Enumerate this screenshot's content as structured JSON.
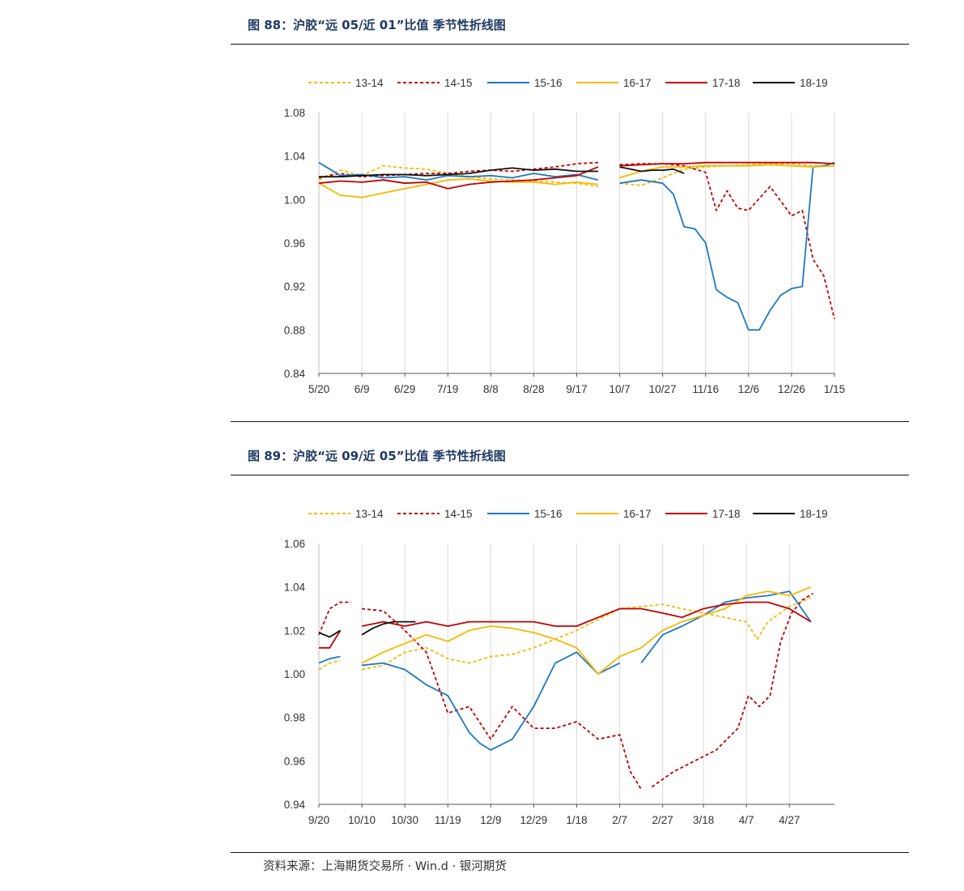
{
  "figures": [
    {
      "title": "图 88：沪胶“远 05/近 01”比值 季节性折线图"
    },
    {
      "title": "图 89：沪胶“远 09/近 05”比值 季节性折线图"
    }
  ],
  "source_note": "资料来源：上海期货交易所 · Win.d · 银河期货",
  "colors": {
    "13-14": "#f5b800",
    "14-15": "#c00000",
    "15-16": "#1f78c1",
    "16-17": "#f5b800",
    "17-18": "#c00000",
    "18-19": "#111111"
  },
  "chart_data": [
    {
      "type": "line",
      "title": "图 88：沪胶“远 05/近 01”比值 季节性折线图",
      "legend_position": "top",
      "grid": "vertical",
      "ylim": [
        0.84,
        1.08
      ],
      "yticks": [
        "1.08",
        "1.04",
        "1.00",
        "0.96",
        "0.92",
        "0.88",
        "0.84"
      ],
      "xticks": [
        "5/20",
        "6/9",
        "6/29",
        "7/19",
        "8/8",
        "8/28",
        "9/17",
        "10/7",
        "10/27",
        "11/16",
        "12/6",
        "12/26",
        "1/15"
      ],
      "series": [
        {
          "name": "13-14",
          "style": "dashed",
          "x": [
            "5/20",
            "5/30",
            "6/9",
            "6/19",
            "6/29",
            "7/9",
            "7/19",
            "7/29",
            "8/8",
            "8/18",
            "8/28",
            "9/7",
            "9/17",
            "9/27"
          ],
          "values": [
            1.018,
            1.027,
            1.022,
            1.031,
            1.029,
            1.028,
            1.024,
            1.021,
            1.019,
            1.018,
            1.017,
            1.016,
            1.015,
            1.012
          ]
        },
        {
          "name": "13-14",
          "style": "dashed",
          "x": [
            "10/7",
            "10/17",
            "10/27",
            "11/6",
            "11/16",
            "11/26",
            "12/6",
            "12/16",
            "12/26",
            "1/5",
            "1/15"
          ],
          "values": [
            1.015,
            1.013,
            1.02,
            1.028,
            1.03,
            1.031,
            1.032,
            1.033,
            1.033,
            1.031,
            1.031
          ]
        },
        {
          "name": "14-15",
          "style": "dashed",
          "x": [
            "5/20",
            "5/30",
            "6/9",
            "6/19",
            "6/29",
            "7/9",
            "7/19",
            "7/29",
            "8/8",
            "8/18",
            "8/28",
            "9/7",
            "9/17",
            "9/27"
          ],
          "values": [
            1.02,
            1.024,
            1.021,
            1.022,
            1.023,
            1.024,
            1.024,
            1.026,
            1.027,
            1.026,
            1.028,
            1.03,
            1.033,
            1.034
          ]
        },
        {
          "name": "14-15",
          "style": "dashed",
          "x": [
            "10/7",
            "10/17",
            "10/27",
            "11/6",
            "11/16",
            "11/21",
            "11/26",
            "12/1",
            "12/6",
            "12/16",
            "12/26",
            "12/31",
            "1/5",
            "1/10",
            "1/15"
          ],
          "values": [
            1.032,
            1.033,
            1.033,
            1.031,
            1.025,
            0.99,
            1.008,
            0.992,
            0.99,
            1.012,
            0.985,
            0.99,
            0.945,
            0.93,
            0.89
          ]
        },
        {
          "name": "15-16",
          "style": "solid",
          "x": [
            "5/20",
            "5/30",
            "6/9",
            "6/19",
            "6/29",
            "7/9",
            "7/19",
            "7/29",
            "8/8",
            "8/18",
            "8/28",
            "9/7",
            "9/17",
            "9/27"
          ],
          "values": [
            1.034,
            1.022,
            1.023,
            1.02,
            1.021,
            1.018,
            1.022,
            1.021,
            1.022,
            1.02,
            1.024,
            1.021,
            1.023,
            1.018
          ]
        },
        {
          "name": "15-16",
          "style": "solid",
          "x": [
            "10/7",
            "10/17",
            "10/27",
            "11/1",
            "11/6",
            "11/11",
            "11/16",
            "11/21",
            "11/26",
            "12/1",
            "12/6",
            "12/11",
            "12/16",
            "12/21",
            "12/26",
            "12/31",
            "1/5",
            "1/10",
            "1/15"
          ],
          "values": [
            1.015,
            1.018,
            1.015,
            1.005,
            0.975,
            0.973,
            0.96,
            0.917,
            0.91,
            0.905,
            0.88,
            0.88,
            0.898,
            0.912,
            0.918,
            0.92,
            1.03,
            1.031,
            1.034
          ]
        },
        {
          "name": "16-17",
          "style": "solid",
          "x": [
            "5/20",
            "5/30",
            "6/9",
            "6/19",
            "6/29",
            "7/9",
            "7/19",
            "7/29",
            "8/8",
            "8/18",
            "8/28",
            "9/7",
            "9/17",
            "9/27"
          ],
          "values": [
            1.015,
            1.004,
            1.002,
            1.006,
            1.01,
            1.014,
            1.018,
            1.019,
            1.017,
            1.016,
            1.016,
            1.014,
            1.016,
            1.014
          ]
        },
        {
          "name": "16-17",
          "style": "solid",
          "x": [
            "10/7",
            "10/17",
            "10/27",
            "11/6",
            "11/16",
            "11/26",
            "12/6",
            "12/16",
            "12/26",
            "1/5",
            "1/15"
          ],
          "values": [
            1.02,
            1.026,
            1.03,
            1.03,
            1.031,
            1.031,
            1.031,
            1.032,
            1.031,
            1.03,
            1.031
          ]
        },
        {
          "name": "17-18",
          "style": "solid",
          "x": [
            "5/20",
            "5/30",
            "6/9",
            "6/19",
            "6/29",
            "7/9",
            "7/19",
            "7/29",
            "8/8",
            "8/18",
            "8/28",
            "9/7",
            "9/17",
            "9/27"
          ],
          "values": [
            1.015,
            1.017,
            1.016,
            1.018,
            1.015,
            1.016,
            1.01,
            1.014,
            1.016,
            1.017,
            1.018,
            1.02,
            1.022,
            1.03
          ]
        },
        {
          "name": "17-18",
          "style": "solid",
          "x": [
            "10/7",
            "10/17",
            "10/27",
            "11/6",
            "11/16",
            "11/26",
            "12/6",
            "12/16",
            "12/26",
            "1/5",
            "1/15"
          ],
          "values": [
            1.031,
            1.032,
            1.033,
            1.033,
            1.034,
            1.034,
            1.034,
            1.034,
            1.034,
            1.034,
            1.033
          ]
        },
        {
          "name": "18-19",
          "style": "solid",
          "x": [
            "5/20",
            "5/30",
            "6/9",
            "6/19",
            "6/29",
            "7/9",
            "7/19",
            "7/29",
            "8/8",
            "8/18",
            "8/28",
            "9/7",
            "9/17",
            "9/27"
          ],
          "values": [
            1.021,
            1.021,
            1.022,
            1.023,
            1.023,
            1.022,
            1.023,
            1.024,
            1.027,
            1.029,
            1.027,
            1.028,
            1.026,
            1.026
          ]
        },
        {
          "name": "18-19",
          "style": "solid",
          "x": [
            "10/7",
            "10/12",
            "10/17",
            "10/22",
            "10/27",
            "11/1",
            "11/6"
          ],
          "values": [
            1.03,
            1.028,
            1.026,
            1.027,
            1.027,
            1.028,
            1.024
          ]
        }
      ]
    },
    {
      "type": "line",
      "title": "图 89：沪胶“远 09/近 05”比值 季节性折线图",
      "legend_position": "top",
      "grid": "vertical",
      "ylim": [
        0.94,
        1.06
      ],
      "yticks": [
        "1.06",
        "1.04",
        "1.02",
        "1.00",
        "0.98",
        "0.96",
        "0.94"
      ],
      "xticks": [
        "9/20",
        "10/10",
        "10/30",
        "11/19",
        "12/9",
        "12/29",
        "1/18",
        "2/7",
        "2/27",
        "3/18",
        "4/7",
        "4/27"
      ],
      "series": [
        {
          "name": "13-14",
          "style": "dashed",
          "x": [
            "9/20",
            "9/25",
            "9/30"
          ],
          "values": [
            1.002,
            1.005,
            1.006
          ]
        },
        {
          "name": "13-14",
          "style": "dashed",
          "x": [
            "10/10",
            "10/20",
            "10/30",
            "11/9",
            "11/19",
            "11/29",
            "12/9",
            "12/19",
            "12/29",
            "1/8",
            "1/18",
            "1/28",
            "2/7",
            "2/17",
            "2/27",
            "3/8",
            "3/18",
            "3/28",
            "4/7",
            "4/12",
            "4/17",
            "4/27",
            "5/7"
          ],
          "values": [
            1.002,
            1.004,
            1.01,
            1.012,
            1.007,
            1.005,
            1.008,
            1.009,
            1.012,
            1.016,
            1.02,
            1.025,
            1.03,
            1.031,
            1.032,
            1.03,
            1.028,
            1.026,
            1.024,
            1.016,
            1.024,
            1.031,
            1.035
          ]
        },
        {
          "name": "14-15",
          "style": "dashed",
          "x": [
            "9/20",
            "9/25",
            "9/30",
            "10/5"
          ],
          "values": [
            1.018,
            1.03,
            1.033,
            1.033
          ]
        },
        {
          "name": "14-15",
          "style": "dashed",
          "x": [
            "10/10",
            "10/20",
            "10/30",
            "11/9",
            "11/19",
            "11/29",
            "12/9",
            "12/19",
            "12/29",
            "1/8",
            "1/18",
            "1/28",
            "2/7",
            "2/12",
            "2/17"
          ],
          "values": [
            1.03,
            1.029,
            1.02,
            1.01,
            0.982,
            0.985,
            0.97,
            0.985,
            0.975,
            0.975,
            0.978,
            0.97,
            0.972,
            0.955,
            0.947
          ]
        },
        {
          "name": "14-15",
          "style": "dashed",
          "x": [
            "2/22",
            "3/4",
            "3/14",
            "3/24",
            "4/3",
            "4/8",
            "4/13",
            "4/18",
            "4/23",
            "4/28",
            "5/3",
            "5/8"
          ],
          "values": [
            0.948,
            0.955,
            0.96,
            0.965,
            0.975,
            0.99,
            0.985,
            0.99,
            1.015,
            1.028,
            1.034,
            1.037
          ]
        },
        {
          "name": "15-16",
          "style": "solid",
          "x": [
            "9/20",
            "9/25",
            "9/30"
          ],
          "values": [
            1.005,
            1.007,
            1.008
          ]
        },
        {
          "name": "15-16",
          "style": "solid",
          "x": [
            "10/10",
            "10/20",
            "10/30",
            "11/9",
            "11/19",
            "11/29",
            "12/4",
            "12/9",
            "12/19",
            "12/29",
            "1/8",
            "1/18",
            "1/28",
            "2/7"
          ],
          "values": [
            1.004,
            1.005,
            1.002,
            0.995,
            0.99,
            0.973,
            0.968,
            0.965,
            0.97,
            0.985,
            1.005,
            1.01,
            1.0,
            1.005
          ]
        },
        {
          "name": "15-16",
          "style": "solid",
          "x": [
            "2/17",
            "2/27",
            "3/8",
            "3/18",
            "3/28",
            "4/7",
            "4/17",
            "4/27",
            "5/7"
          ],
          "values": [
            1.005,
            1.018,
            1.022,
            1.027,
            1.033,
            1.035,
            1.036,
            1.038,
            1.024
          ]
        },
        {
          "name": "16-17",
          "style": "solid",
          "x": [
            "10/10",
            "10/20",
            "10/30",
            "11/9",
            "11/19",
            "11/29",
            "12/9",
            "12/19",
            "12/29",
            "1/8",
            "1/18",
            "1/28",
            "2/7",
            "2/17",
            "2/27",
            "3/8",
            "3/18",
            "3/28",
            "4/7",
            "4/17",
            "4/27",
            "5/7"
          ],
          "values": [
            1.005,
            1.01,
            1.014,
            1.018,
            1.015,
            1.02,
            1.022,
            1.021,
            1.019,
            1.016,
            1.012,
            1.0,
            1.008,
            1.012,
            1.02,
            1.024,
            1.027,
            1.03,
            1.036,
            1.038,
            1.036,
            1.04
          ]
        },
        {
          "name": "17-18",
          "style": "solid",
          "x": [
            "9/20",
            "9/25",
            "9/30"
          ],
          "values": [
            1.012,
            1.012,
            1.02
          ]
        },
        {
          "name": "17-18",
          "style": "solid",
          "x": [
            "10/10",
            "10/20",
            "10/30",
            "11/9",
            "11/19",
            "11/29",
            "12/9",
            "12/19",
            "12/29",
            "1/8",
            "1/18",
            "1/28",
            "2/7",
            "2/17",
            "2/27",
            "3/8",
            "3/18",
            "3/28",
            "4/7",
            "4/17",
            "4/27",
            "5/7"
          ],
          "values": [
            1.022,
            1.024,
            1.022,
            1.024,
            1.022,
            1.024,
            1.024,
            1.024,
            1.024,
            1.022,
            1.022,
            1.026,
            1.03,
            1.03,
            1.028,
            1.026,
            1.03,
            1.032,
            1.033,
            1.033,
            1.03,
            1.024
          ]
        },
        {
          "name": "18-19",
          "style": "solid",
          "x": [
            "9/20",
            "9/25",
            "9/30"
          ],
          "values": [
            1.019,
            1.017,
            1.02
          ]
        },
        {
          "name": "18-19",
          "style": "solid",
          "x": [
            "10/10",
            "10/15",
            "10/20",
            "10/25",
            "10/30",
            "11/4"
          ],
          "values": [
            1.018,
            1.021,
            1.023,
            1.024,
            1.024,
            1.024
          ]
        }
      ]
    }
  ]
}
